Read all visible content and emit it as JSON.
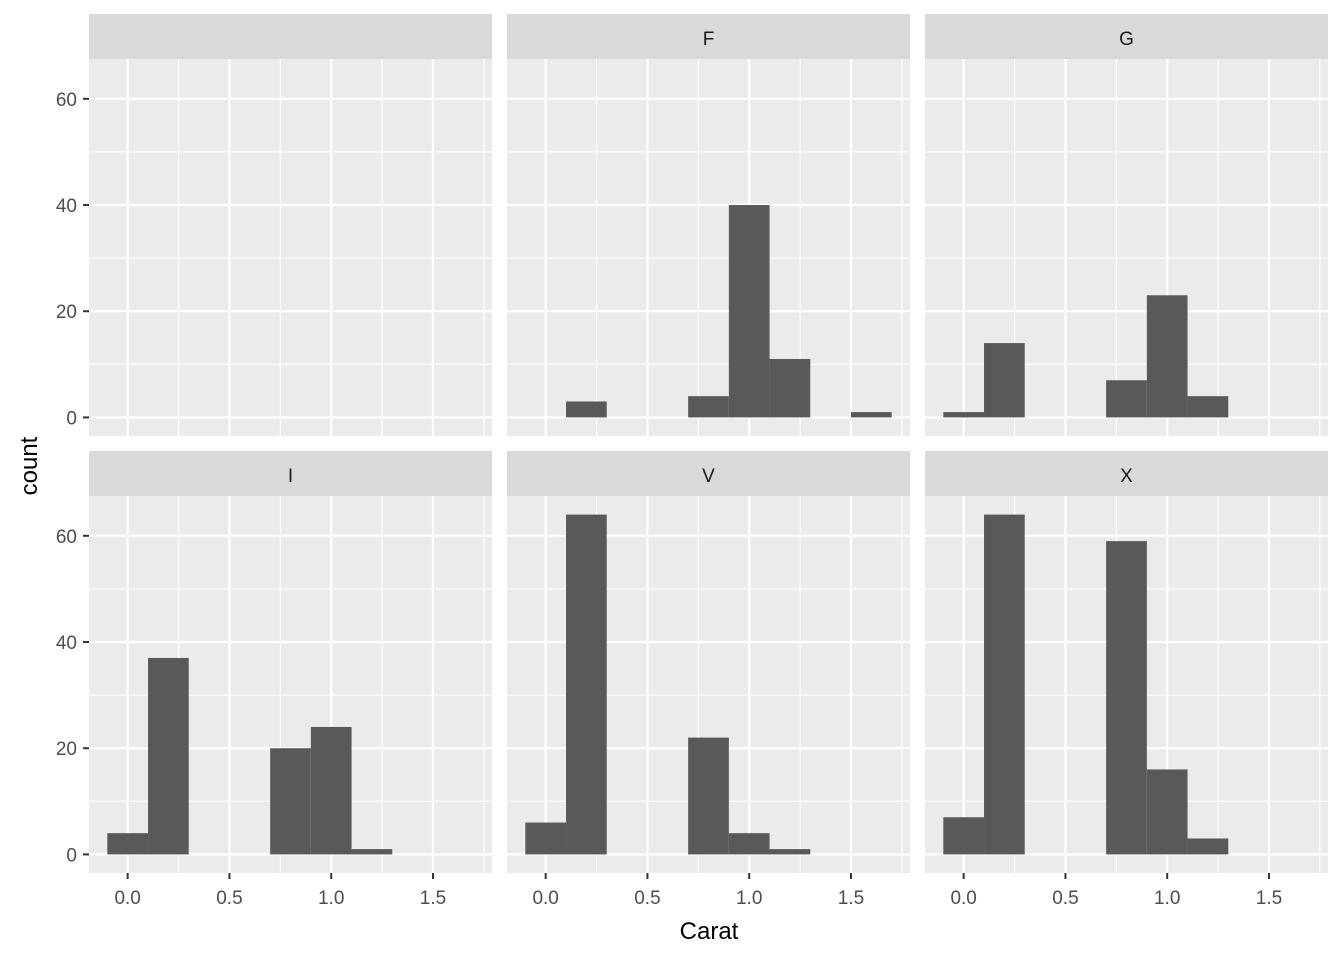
{
  "colors": {
    "panel_background": "#ebebeb",
    "strip_background": "#d9d9d9",
    "gridline": "#ffffff",
    "bar_fill": "#595959",
    "tick": "#333333"
  },
  "chart_data": {
    "type": "bar",
    "chart_kind": "faceted histogram",
    "xlabel": "Carat",
    "ylabel": "count",
    "xlim": [
      -0.19,
      1.79
    ],
    "ylim": [
      -3.5,
      67.5
    ],
    "x_ticks": [
      "0.0",
      "0.5",
      "1.0",
      "1.5"
    ],
    "x_tick_values": [
      0.0,
      0.5,
      1.0,
      1.5
    ],
    "y_ticks": [
      "0",
      "20",
      "40",
      "60"
    ],
    "y_tick_values": [
      0,
      20,
      40,
      60
    ],
    "bin_width": 0.2,
    "bin_edges": [
      -0.1,
      0.1,
      0.3,
      0.5,
      0.7,
      0.9,
      1.1,
      1.3,
      1.5,
      1.7
    ],
    "grid": true,
    "facets": [
      {
        "label": "",
        "counts": [
          0,
          0,
          0,
          0,
          0,
          0,
          0,
          0,
          0
        ]
      },
      {
        "label": "F",
        "counts": [
          0,
          3,
          0,
          0,
          4,
          40,
          11,
          0,
          1
        ]
      },
      {
        "label": "G",
        "counts": [
          1,
          14,
          0,
          0,
          7,
          23,
          4,
          0,
          0
        ]
      },
      {
        "label": "I",
        "counts": [
          4,
          37,
          0,
          0,
          20,
          24,
          1,
          0,
          0
        ]
      },
      {
        "label": "V",
        "counts": [
          6,
          64,
          0,
          0,
          22,
          4,
          1,
          0,
          0
        ]
      },
      {
        "label": "X",
        "counts": [
          7,
          64,
          0,
          0,
          59,
          16,
          3,
          0,
          0
        ]
      }
    ]
  }
}
